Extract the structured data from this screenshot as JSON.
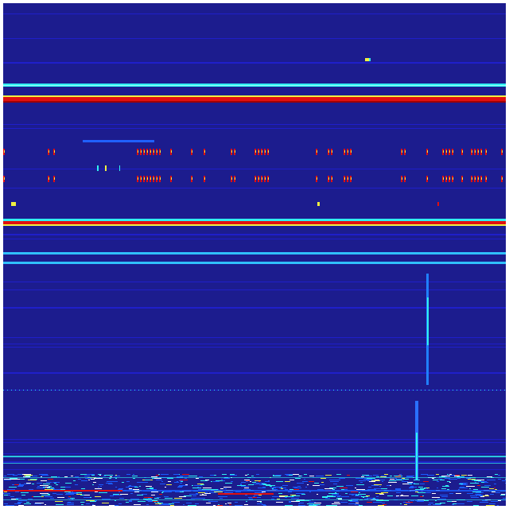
{
  "view": {
    "kind": "spectrogram-style heatmap",
    "colormap": "jet",
    "colors": {
      "background": "#1c1c8e",
      "low": "#2020d0",
      "mid": "#1a5cff",
      "cyan": "#30f0f0",
      "yellow": "#f0f040",
      "red": "#e01010",
      "darkred": "#a00000"
    }
  }
}
